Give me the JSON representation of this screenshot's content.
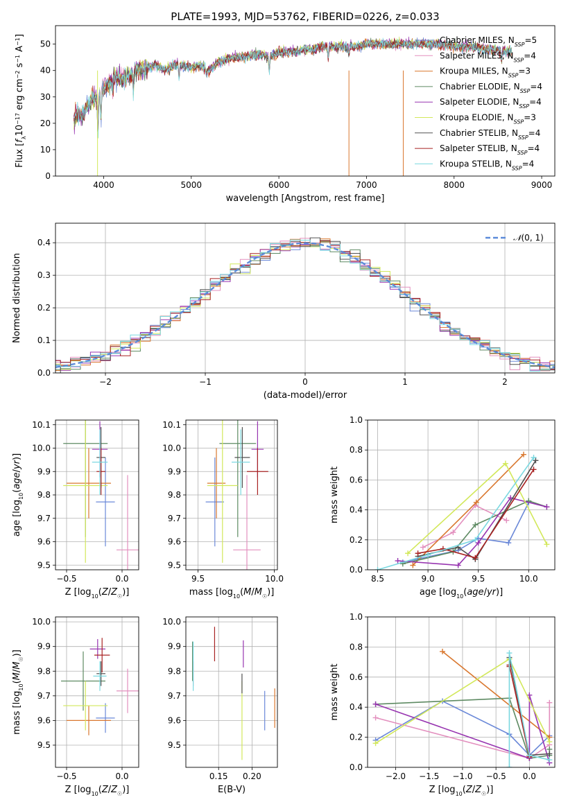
{
  "figure": {
    "title": "PLATE=1993, MJD=53762, FIBERID=0226, z=0.033"
  },
  "chart_data": [
    {
      "id": "spectrum",
      "type": "line",
      "title": "PLATE=1993, MJD=53762, FIBERID=0226, z=0.033",
      "xlabel": "wavelength [Angstrom, rest frame]",
      "ylabel": "Flux [f_λ 10^-17 erg cm^-2 s^-1 A^-1]",
      "xlim": [
        3450,
        9150
      ],
      "ylim": [
        0,
        57
      ],
      "xticks": [
        4000,
        5000,
        6000,
        7000,
        8000,
        9000
      ],
      "yticks": [
        0,
        10,
        20,
        30,
        40,
        50
      ],
      "grid": false,
      "legend_position": "top-right",
      "data_range": [
        3660,
        8660
      ],
      "shape": [
        [
          3660,
          21
        ],
        [
          3700,
          24
        ],
        [
          3760,
          23
        ],
        [
          3820,
          27
        ],
        [
          3900,
          30
        ],
        [
          3930,
          28
        ],
        [
          3980,
          33
        ],
        [
          4050,
          35
        ],
        [
          4100,
          37
        ],
        [
          4200,
          37
        ],
        [
          4300,
          38
        ],
        [
          4400,
          40
        ],
        [
          4500,
          41
        ],
        [
          4600,
          42
        ],
        [
          4700,
          40
        ],
        [
          4800,
          42
        ],
        [
          4900,
          42
        ],
        [
          5000,
          41
        ],
        [
          5100,
          42
        ],
        [
          5200,
          40
        ],
        [
          5300,
          43
        ],
        [
          5400,
          44
        ],
        [
          5500,
          45
        ],
        [
          5600,
          45
        ],
        [
          5700,
          46
        ],
        [
          5800,
          46
        ],
        [
          5900,
          45
        ],
        [
          6000,
          47
        ],
        [
          6100,
          47
        ],
        [
          6200,
          47
        ],
        [
          6300,
          48
        ],
        [
          6400,
          48
        ],
        [
          6500,
          49
        ],
        [
          6600,
          49
        ],
        [
          6700,
          49
        ],
        [
          6800,
          49
        ],
        [
          6900,
          49
        ],
        [
          7000,
          50
        ],
        [
          7200,
          50
        ],
        [
          7400,
          50
        ],
        [
          7600,
          50
        ],
        [
          7800,
          50
        ],
        [
          8000,
          49
        ],
        [
          8200,
          49
        ],
        [
          8400,
          48
        ],
        [
          8660,
          47
        ]
      ],
      "series": [
        {
          "name": "Chabrier MILES, N_SSP=5",
          "color": "#6a88d8"
        },
        {
          "name": "Salpeter MILES, N_SSP=4",
          "color": "#e38fbe"
        },
        {
          "name": "Kroupa MILES, N_SSP=3",
          "color": "#d9772e"
        },
        {
          "name": "Chabrier ELODIE, N_SSP=4",
          "color": "#5d8a62"
        },
        {
          "name": "Salpeter ELODIE, N_SSP=4",
          "color": "#9734b0"
        },
        {
          "name": "Kroupa ELODIE, N_SSP=3",
          "color": "#d2e85a"
        },
        {
          "name": "Chabrier STELIB, N_SSP=4",
          "color": "#505050"
        },
        {
          "name": "Salpeter STELIB, N_SSP=4",
          "color": "#a82222"
        },
        {
          "name": "Kroupa STELIB, N_SSP=4",
          "color": "#7ad8e0"
        }
      ]
    },
    {
      "id": "residuals",
      "type": "histogram",
      "xlabel": "(data-model)/error",
      "ylabel": "Normed distribution",
      "xlim": [
        -2.5,
        2.5
      ],
      "ylim": [
        0,
        0.46
      ],
      "xticks": [
        -2,
        -1,
        0,
        1,
        2
      ],
      "yticks": [
        0.0,
        0.1,
        0.2,
        0.3,
        0.4
      ],
      "grid": true,
      "legend_position": "top-right",
      "reference_curve": {
        "name": "N(0,1)",
        "color": "#5b8bd9"
      },
      "bin_width": 0.1,
      "colors": [
        "#6a88d8",
        "#e38fbe",
        "#d9772e",
        "#5d8a62",
        "#9734b0",
        "#d2e85a",
        "#505050",
        "#a82222",
        "#7ad8e0"
      ]
    },
    {
      "id": "age-vs-Z",
      "type": "scatter",
      "xlabel": "Z [log10(Z/Z☉)]",
      "ylabel": "age [log10(age/yr)]",
      "xlim": [
        -0.6,
        0.15
      ],
      "ylim": [
        9.48,
        10.12
      ],
      "xticks": [
        -0.5,
        0.0
      ],
      "yticks": [
        9.5,
        9.6,
        9.7,
        9.8,
        9.9,
        10.0,
        10.1
      ],
      "grid": true,
      "points": [
        {
          "color": "#6a88d8",
          "x": -0.15,
          "xerr": 0.085,
          "y": 9.77,
          "yerr": 0.19
        },
        {
          "color": "#e38fbe",
          "x": 0.05,
          "xerr": 0.1,
          "y": 9.565,
          "yerr": 0.32
        },
        {
          "color": "#d9772e",
          "x": -0.3,
          "xerr": 0.2,
          "y": 9.85,
          "yerr": 0.15
        },
        {
          "color": "#5d8a62",
          "x": -0.33,
          "xerr": 0.2,
          "y": 10.02,
          "yerr": 0.4
        },
        {
          "color": "#9734b0",
          "x": -0.2,
          "xerr": 0.07,
          "y": 9.995,
          "yerr": 0.12
        },
        {
          "color": "#d2e85a",
          "x": -0.33,
          "xerr": 0.2,
          "y": 9.84,
          "yerr": 0.33
        },
        {
          "color": "#505050",
          "x": -0.19,
          "xerr": 0.04,
          "y": 9.96,
          "yerr": 0.13
        },
        {
          "color": "#a82222",
          "x": -0.19,
          "xerr": 0.04,
          "y": 9.9,
          "yerr": 0.1
        },
        {
          "color": "#7ad8e0",
          "x": -0.2,
          "xerr": 0.07,
          "y": 9.94,
          "yerr": 0.14
        }
      ]
    },
    {
      "id": "age-vs-mass",
      "type": "scatter",
      "xlabel": "mass [log10(M/M☉)]",
      "ylabel": "",
      "xlim": [
        9.42,
        10.02
      ],
      "ylim": [
        9.48,
        10.12
      ],
      "xticks": [
        9.5,
        10.0
      ],
      "yticks": [
        9.5,
        9.6,
        9.7,
        9.8,
        9.9,
        10.0,
        10.1
      ],
      "grid": true,
      "points": [
        {
          "color": "#6a88d8",
          "x": 9.61,
          "xerr": 0.06,
          "y": 9.77,
          "yerr": 0.19
        },
        {
          "color": "#e38fbe",
          "x": 9.82,
          "xerr": 0.09,
          "y": 9.565,
          "yerr": 0.32
        },
        {
          "color": "#d9772e",
          "x": 9.62,
          "xerr": 0.06,
          "y": 9.85,
          "yerr": 0.15
        },
        {
          "color": "#5d8a62",
          "x": 9.76,
          "xerr": 0.12,
          "y": 10.02,
          "yerr": 0.4
        },
        {
          "color": "#9734b0",
          "x": 9.89,
          "xerr": 0.04,
          "y": 9.995,
          "yerr": 0.12
        },
        {
          "color": "#d2e85a",
          "x": 9.66,
          "xerr": 0.1,
          "y": 9.84,
          "yerr": 0.33
        },
        {
          "color": "#505050",
          "x": 9.79,
          "xerr": 0.05,
          "y": 9.96,
          "yerr": 0.13
        },
        {
          "color": "#a82222",
          "x": 9.89,
          "xerr": 0.07,
          "y": 9.9,
          "yerr": 0.1
        },
        {
          "color": "#7ad8e0",
          "x": 9.78,
          "xerr": 0.06,
          "y": 9.94,
          "yerr": 0.14
        }
      ]
    },
    {
      "id": "weight-vs-age",
      "type": "line",
      "xlabel": "age [log10(age/yr)]",
      "ylabel": "mass weight",
      "xlim": [
        8.4,
        10.26
      ],
      "ylim": [
        0,
        1.0
      ],
      "xticks": [
        8.5,
        9.0,
        9.5,
        10.0
      ],
      "yticks": [
        0.0,
        0.2,
        0.4,
        0.6,
        0.8,
        1.0
      ],
      "grid": true,
      "series": [
        {
          "color": "#6a88d8",
          "x": [
            8.75,
            9.3,
            9.5,
            9.8,
            10.0
          ],
          "y": [
            0.05,
            0.13,
            0.21,
            0.18,
            0.45
          ]
        },
        {
          "color": "#e38fbe",
          "x": [
            8.95,
            9.25,
            9.47,
            9.78
          ],
          "y": [
            0.15,
            0.25,
            0.43,
            0.33
          ]
        },
        {
          "color": "#d9772e",
          "x": [
            8.85,
            9.48,
            9.95
          ],
          "y": [
            0.03,
            0.45,
            0.77
          ]
        },
        {
          "color": "#5d8a62",
          "x": [
            8.75,
            9.25,
            9.47,
            10.0,
            10.18
          ],
          "y": [
            0.04,
            0.12,
            0.3,
            0.46,
            0.42
          ]
        },
        {
          "color": "#9734b0",
          "x": [
            8.7,
            9.3,
            9.5,
            9.82,
            10.18
          ],
          "y": [
            0.06,
            0.03,
            0.18,
            0.48,
            0.42
          ]
        },
        {
          "color": "#d2e85a",
          "x": [
            8.8,
            9.77,
            10.18
          ],
          "y": [
            0.11,
            0.71,
            0.17
          ]
        },
        {
          "color": "#505050",
          "x": [
            8.9,
            9.3,
            9.47,
            10.07
          ],
          "y": [
            0.09,
            0.15,
            0.07,
            0.73
          ]
        },
        {
          "color": "#a82222",
          "x": [
            8.9,
            9.15,
            9.47,
            10.05
          ],
          "y": [
            0.11,
            0.14,
            0.08,
            0.67
          ]
        },
        {
          "color": "#7ad8e0",
          "x": [
            8.5,
            9.0,
            9.47,
            10.05
          ],
          "y": [
            0.0,
            0.1,
            0.2,
            0.75
          ]
        }
      ]
    },
    {
      "id": "mass-vs-Z",
      "type": "scatter",
      "xlabel": "Z [log10(Z/Z☉)]",
      "ylabel": "mass [log10(M/M☉)]",
      "xlim": [
        -0.6,
        0.15
      ],
      "ylim": [
        9.41,
        10.02
      ],
      "xticks": [
        -0.5,
        0.0
      ],
      "yticks": [
        9.5,
        9.6,
        9.7,
        9.8,
        9.9,
        10.0
      ],
      "grid": true,
      "points": [
        {
          "color": "#6a88d8",
          "x": -0.15,
          "xerr": 0.085,
          "y": 9.61,
          "yerr": 0.06
        },
        {
          "color": "#e38fbe",
          "x": 0.05,
          "xerr": 0.1,
          "y": 9.72,
          "yerr": 0.09
        },
        {
          "color": "#d9772e",
          "x": -0.3,
          "xerr": 0.2,
          "y": 9.6,
          "yerr": 0.06
        },
        {
          "color": "#5d8a62",
          "x": -0.35,
          "xerr": 0.2,
          "y": 9.76,
          "yerr": 0.12
        },
        {
          "color": "#9734b0",
          "x": -0.22,
          "xerr": 0.07,
          "y": 9.89,
          "yerr": 0.04
        },
        {
          "color": "#d2e85a",
          "x": -0.33,
          "xerr": 0.2,
          "y": 9.66,
          "yerr": 0.1
        },
        {
          "color": "#505050",
          "x": -0.19,
          "xerr": 0.04,
          "y": 9.79,
          "yerr": 0.05
        },
        {
          "color": "#a82222",
          "x": -0.18,
          "xerr": 0.07,
          "y": 9.865,
          "yerr": 0.07
        },
        {
          "color": "#7ad8e0",
          "x": -0.2,
          "xerr": 0.06,
          "y": 9.78,
          "yerr": 0.06
        }
      ]
    },
    {
      "id": "mass-vs-EBV",
      "type": "scatter",
      "xlabel": "E(B-V)",
      "ylabel": "",
      "xlim": [
        0.101,
        0.238
      ],
      "ylim": [
        9.41,
        10.02
      ],
      "xticks": [
        0.15,
        0.2
      ],
      "yticks": [
        9.5,
        9.6,
        9.7,
        9.8,
        9.9,
        10.0
      ],
      "grid": true,
      "points": [
        {
          "color": "#6a88d8",
          "x": 0.219,
          "y": 9.64,
          "yerr": 0.08
        },
        {
          "color": "#e38fbe",
          "x": 0.112,
          "y": 9.79,
          "yerr": 0.05
        },
        {
          "color": "#d9772e",
          "x": 0.234,
          "y": 9.65,
          "yerr": 0.08
        },
        {
          "color": "#5d8a62",
          "x": 0.111,
          "y": 9.84,
          "yerr": 0.08
        },
        {
          "color": "#9734b0",
          "x": 0.187,
          "y": 9.87,
          "yerr": 0.055
        },
        {
          "color": "#d2e85a",
          "x": 0.185,
          "y": 9.6,
          "yerr": 0.16
        },
        {
          "color": "#505050",
          "x": 0.185,
          "y": 9.75,
          "yerr": 0.04
        },
        {
          "color": "#a82222",
          "x": 0.144,
          "y": 9.91,
          "yerr": 0.07
        },
        {
          "color": "#7ad8e0",
          "x": 0.112,
          "y": 9.82,
          "yerr": 0.1
        }
      ]
    },
    {
      "id": "weight-vs-Z",
      "type": "line",
      "xlabel": "Z [log10(Z/Z☉)]",
      "ylabel": "mass weight",
      "xlim": [
        -2.42,
        0.38
      ],
      "ylim": [
        0,
        1.0
      ],
      "xticks": [
        -2.0,
        -1.5,
        -1.0,
        -0.5,
        0.0
      ],
      "yticks": [
        0.0,
        0.2,
        0.4,
        0.6,
        0.8,
        1.0
      ],
      "grid": true,
      "series": [
        {
          "color": "#6a88d8",
          "x": [
            -2.3,
            -1.3,
            -0.3,
            0.0,
            0.3
          ],
          "y": [
            0.18,
            0.44,
            0.22,
            0.08,
            0.21
          ]
        },
        {
          "color": "#e38fbe",
          "x": [
            -2.3,
            0.0,
            0.3,
            0.3
          ],
          "y": [
            0.33,
            0.06,
            0.15,
            0.43
          ]
        },
        {
          "color": "#d9772e",
          "x": [
            -1.3,
            0.3
          ],
          "y": [
            0.77,
            0.2
          ]
        },
        {
          "color": "#5d8a62",
          "x": [
            -2.3,
            -0.3,
            0.0,
            0.3,
            0.3
          ],
          "y": [
            0.42,
            0.46,
            0.06,
            0.08,
            0.12
          ]
        },
        {
          "color": "#9734b0",
          "x": [
            -2.3,
            0.0,
            0.0,
            0.3
          ],
          "y": [
            0.42,
            0.06,
            0.48,
            0.03
          ]
        },
        {
          "color": "#d2e85a",
          "x": [
            -2.3,
            -0.3,
            0.3
          ],
          "y": [
            0.16,
            0.72,
            0.17
          ]
        },
        {
          "color": "#505050",
          "x": [
            -0.3,
            0.0,
            0.3
          ],
          "y": [
            0.73,
            0.08,
            0.09
          ]
        },
        {
          "color": "#a82222",
          "x": [
            -0.3,
            -0.3,
            0.0,
            0.0
          ],
          "y": [
            0.67,
            0.68,
            0.07,
            0.08
          ]
        },
        {
          "color": "#7ad8e0",
          "x": [
            -0.3,
            -0.3,
            0.0,
            0.3
          ],
          "y": [
            0.0,
            0.76,
            0.08,
            0.05
          ]
        }
      ]
    }
  ]
}
